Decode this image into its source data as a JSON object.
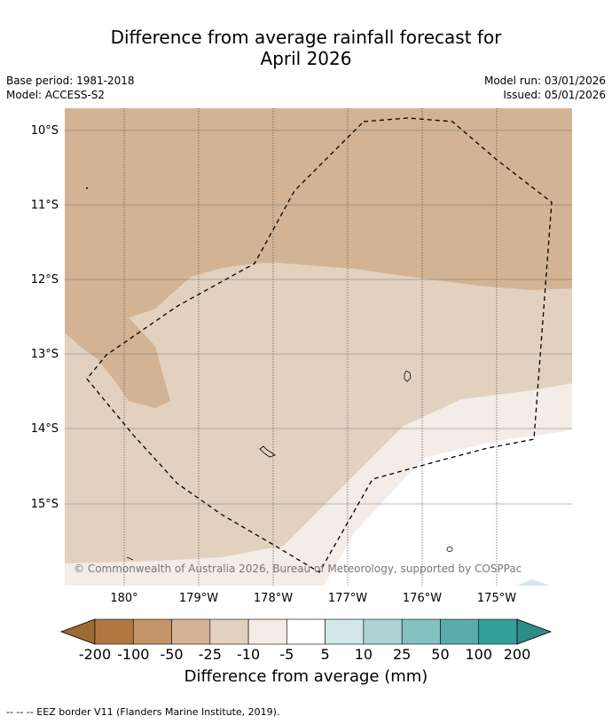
{
  "title_line1": "Difference from average rainfall forecast for",
  "title_line2": "April 2026",
  "meta": {
    "base_period": "Base period: 1981-2018",
    "model": "Model: ACCESS-S2",
    "model_run": "Model run: 03/01/2026",
    "issued": "Issued: 05/01/2026"
  },
  "lat_labels": [
    "10°S",
    "11°S",
    "12°S",
    "13°S",
    "14°S",
    "15°S"
  ],
  "lon_labels": [
    "180°",
    "179°W",
    "178°W",
    "177°W",
    "176°W",
    "175°W"
  ],
  "copyright": "© Commonwealth of Australia 2026, Bureau of Meteorology, supported by COSPPac",
  "colorbar": {
    "ticks": [
      "-200",
      "-100",
      "-50",
      "-25",
      "-10",
      "-5",
      "5",
      "10",
      "25",
      "50",
      "100",
      "200"
    ],
    "colors": [
      "#9e6b35",
      "#b07840",
      "#c29467",
      "#d3b393",
      "#e3d1c0",
      "#f4ece6",
      "#ffffff",
      "#d2e8e8",
      "#acd4d4",
      "#84c2c2",
      "#5aacac",
      "#33a09a",
      "#2d8c89"
    ],
    "label": "Difference from average (mm)"
  },
  "footnote": "--  --  -- EEZ border V11 (Flanders Marine Institute, 2019)."
}
